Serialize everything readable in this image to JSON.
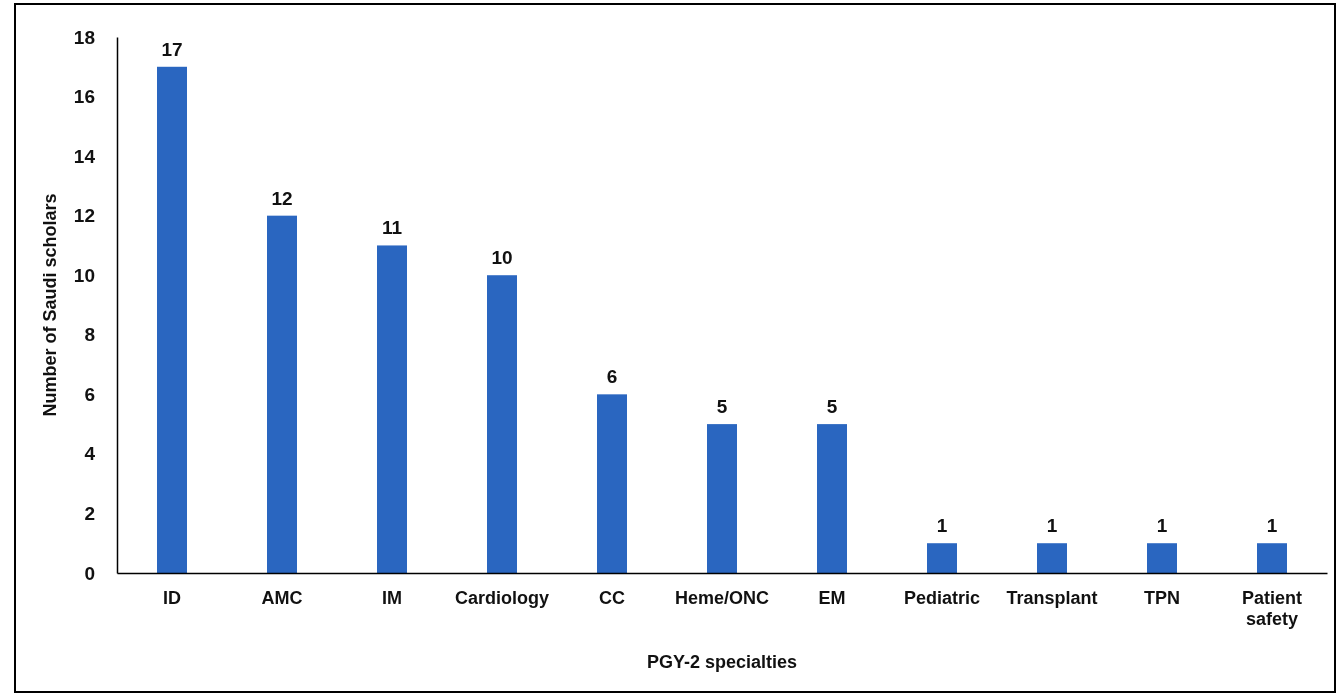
{
  "chart_data": {
    "type": "bar",
    "xlabel": "PGY-2 specialties",
    "ylabel": "Number of Saudi scholars",
    "categories": [
      "ID",
      "AMC",
      "IM",
      "Cardiology",
      "CC",
      "Heme/ONC",
      "EM",
      "Pediatric",
      "Transplant",
      "TPN",
      "Patient safety"
    ],
    "values": [
      17,
      12,
      11,
      10,
      6,
      5,
      5,
      1,
      1,
      1,
      1
    ],
    "color": "#2a66c0",
    "ylim": [
      0,
      18
    ],
    "yticks": [
      0,
      2,
      4,
      6,
      8,
      10,
      12,
      14,
      16,
      18
    ],
    "grid": false,
    "data_labels": true
  }
}
